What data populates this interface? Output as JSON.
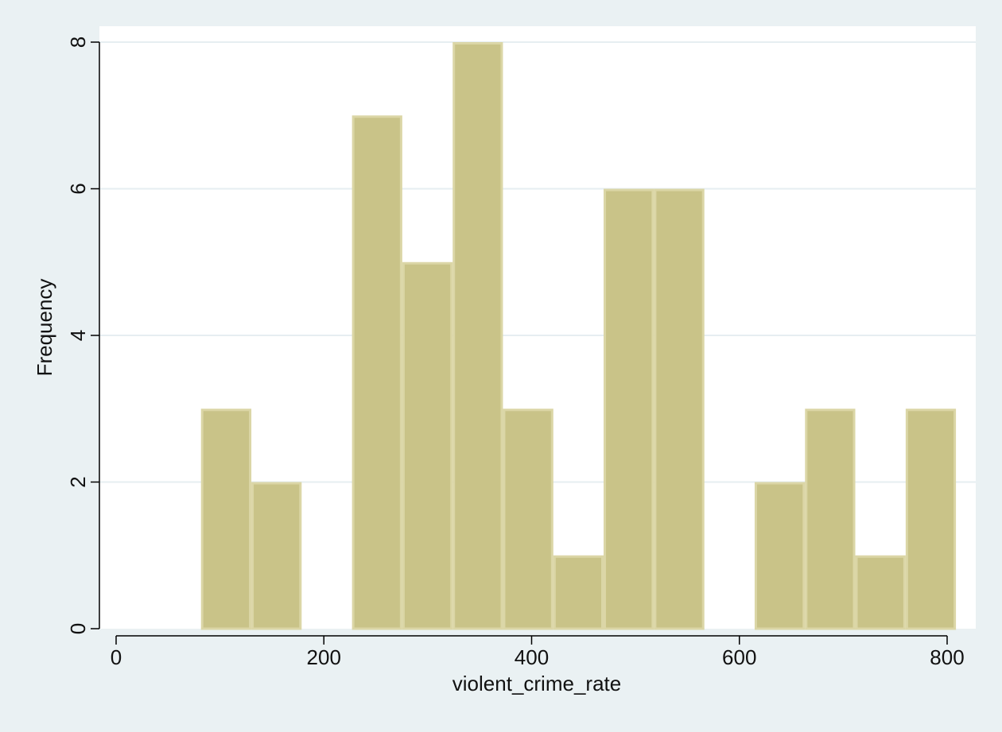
{
  "chart_data": {
    "type": "bar",
    "title": "",
    "xlabel": "violent_crime_rate",
    "ylabel": "Frequency",
    "xlim": [
      -10,
      830
    ],
    "ylim": [
      0,
      8
    ],
    "x_ticks": [
      0,
      200,
      400,
      600,
      800
    ],
    "x_tick_labels": [
      "0",
      "200",
      "400",
      "600",
      "800"
    ],
    "y_ticks": [
      0,
      2,
      4,
      6,
      8
    ],
    "y_tick_labels": [
      "0",
      "2",
      "4",
      "6",
      "8"
    ],
    "grid": true,
    "bins": [
      {
        "start": 81.7,
        "end": 130.2,
        "value": 3
      },
      {
        "start": 130.2,
        "end": 178.6,
        "value": 2
      },
      {
        "start": 178.6,
        "end": 227.1,
        "value": 0
      },
      {
        "start": 227.1,
        "end": 275.5,
        "value": 7
      },
      {
        "start": 275.5,
        "end": 324.0,
        "value": 5
      },
      {
        "start": 324.0,
        "end": 372.4,
        "value": 8
      },
      {
        "start": 372.4,
        "end": 420.9,
        "value": 3
      },
      {
        "start": 420.9,
        "end": 469.3,
        "value": 1
      },
      {
        "start": 469.3,
        "end": 517.8,
        "value": 6
      },
      {
        "start": 517.8,
        "end": 566.3,
        "value": 6
      },
      {
        "start": 566.3,
        "end": 614.7,
        "value": 0
      },
      {
        "start": 614.7,
        "end": 663.2,
        "value": 2
      },
      {
        "start": 663.2,
        "end": 711.6,
        "value": 3
      },
      {
        "start": 711.6,
        "end": 760.1,
        "value": 1
      },
      {
        "start": 760.1,
        "end": 808.5,
        "value": 3
      }
    ],
    "colors": {
      "bar_fill": "#c9c388",
      "bar_edge": "#dbd6a6",
      "plot_background": "#ffffff",
      "outer_background": "#eaf1f3",
      "grid": "#e6eef1",
      "axis": "#000000"
    }
  }
}
